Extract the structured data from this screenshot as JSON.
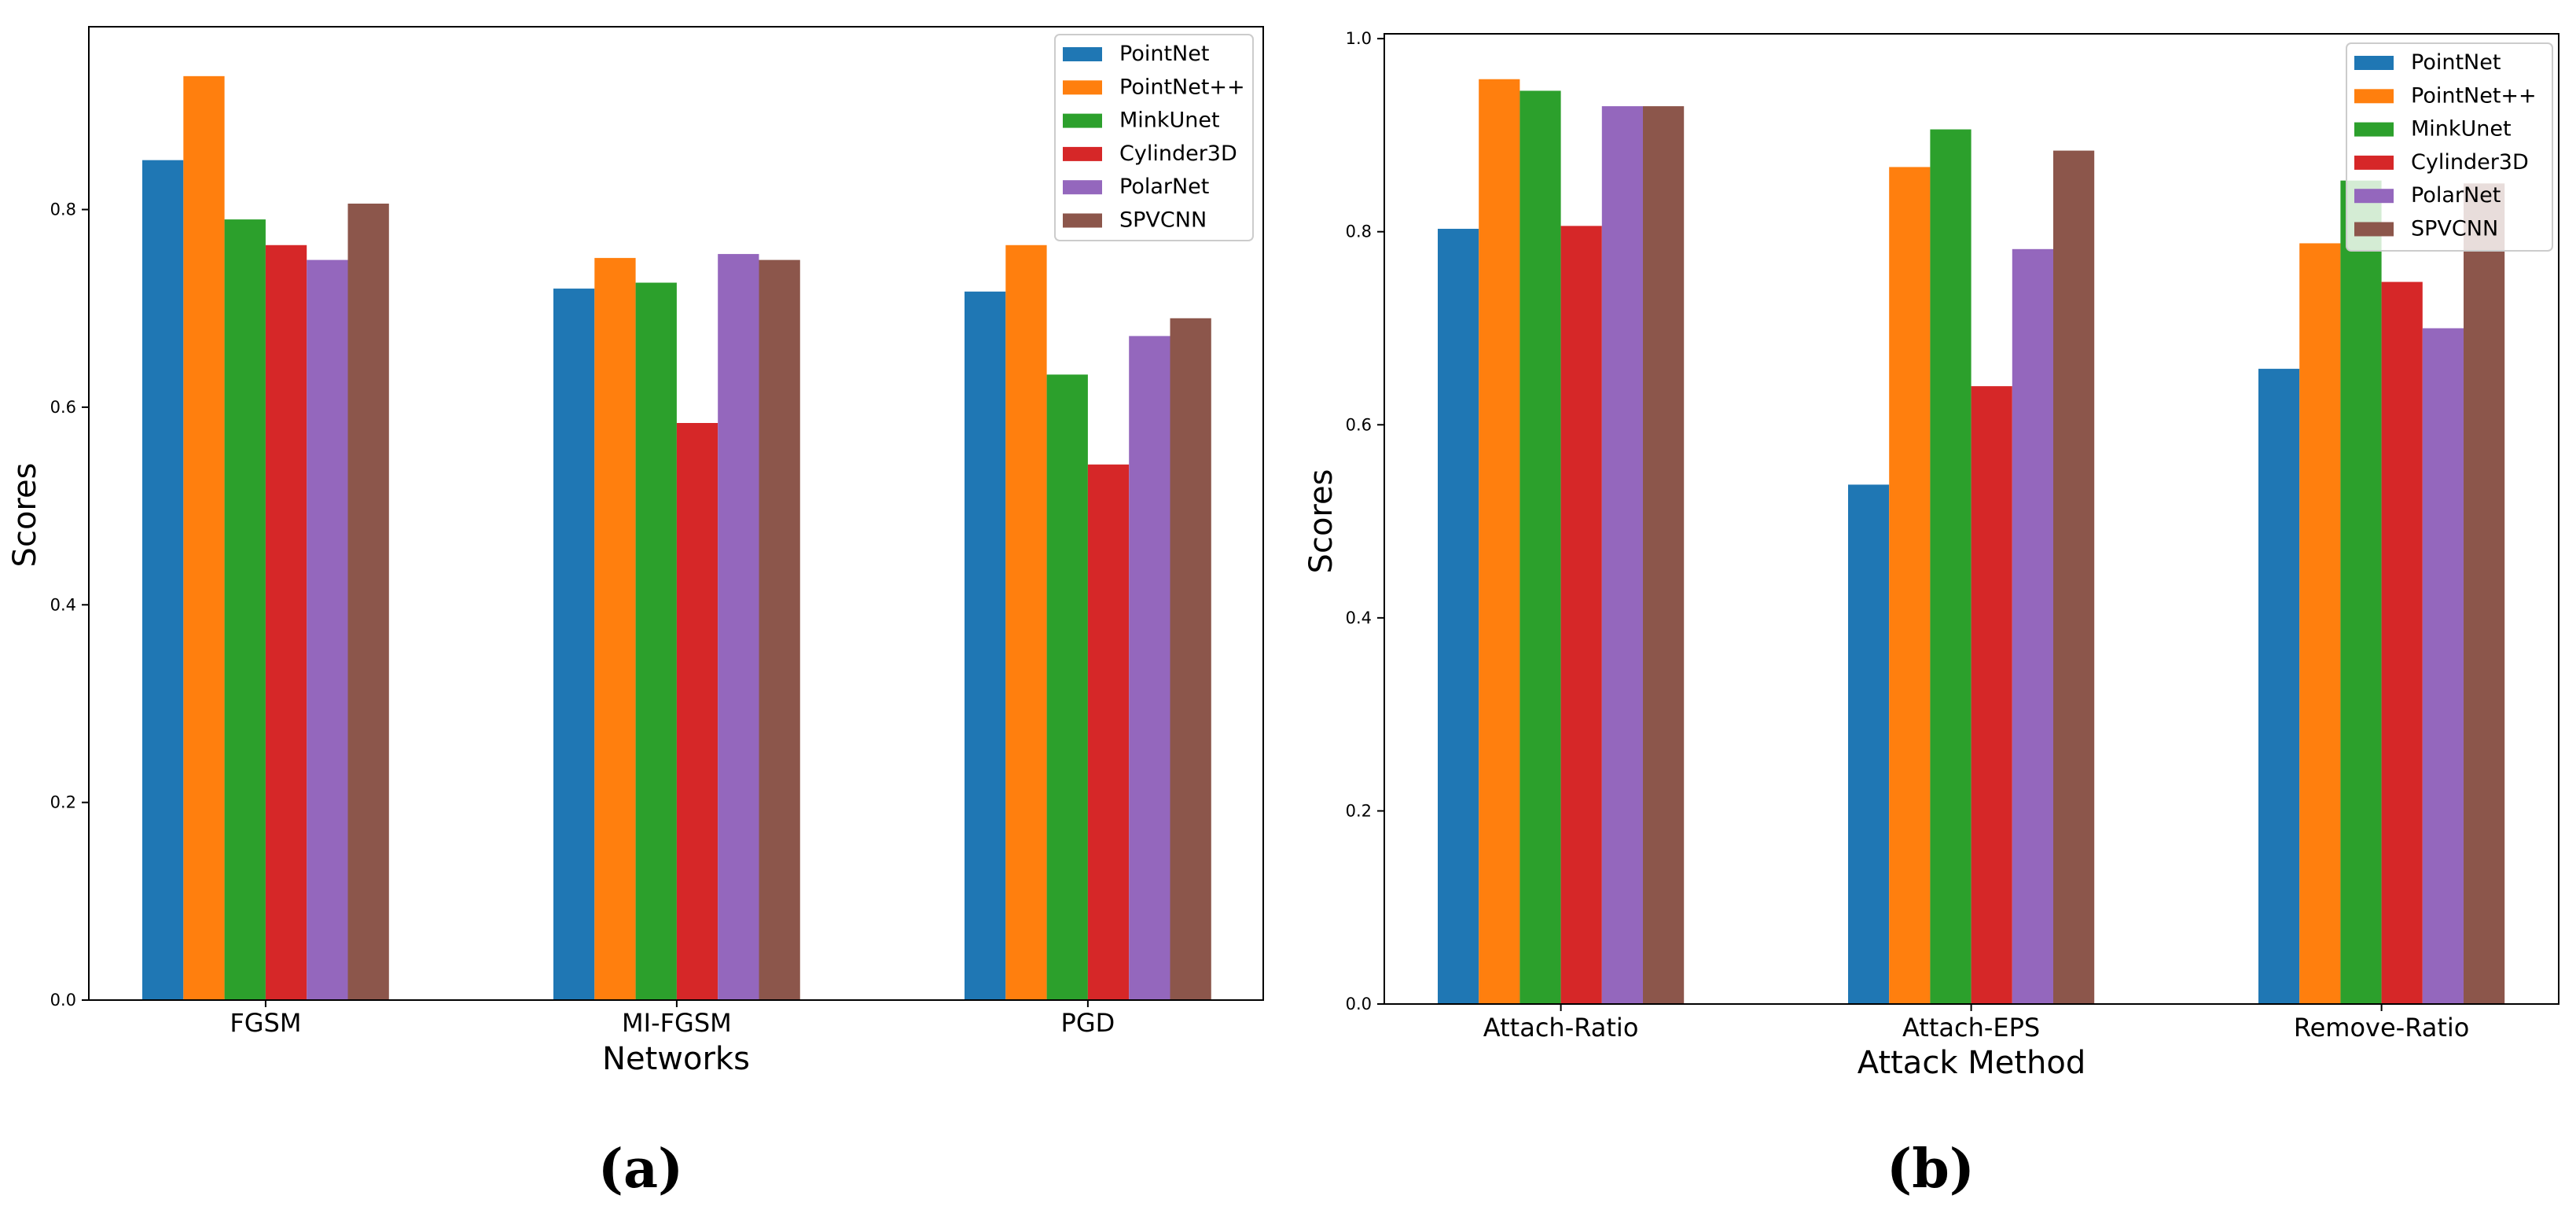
{
  "series_colors": [
    "#1f77b4",
    "#ff7f0e",
    "#2ca02c",
    "#d62728",
    "#9467bd",
    "#8c564b"
  ],
  "chart_data": [
    {
      "type": "bar",
      "panel_label": "(a)",
      "title": "",
      "xlabel": "Networks",
      "ylabel": "Scores",
      "categories": [
        "FGSM",
        "MI-FGSM",
        "PGD"
      ],
      "ylim": [
        0,
        0.985
      ],
      "yticks": [
        "0.0",
        "0.2",
        "0.4",
        "0.6",
        "0.8"
      ],
      "legend_position": "top-right",
      "series": [
        {
          "name": "PointNet",
          "values": [
            0.85,
            0.72,
            0.717
          ]
        },
        {
          "name": "PointNet++",
          "values": [
            0.935,
            0.751,
            0.764
          ]
        },
        {
          "name": "MinkUnet",
          "values": [
            0.79,
            0.726,
            0.633
          ]
        },
        {
          "name": "Cylinder3D",
          "values": [
            0.764,
            0.584,
            0.542
          ]
        },
        {
          "name": "PolarNet",
          "values": [
            0.749,
            0.755,
            0.672
          ]
        },
        {
          "name": "SPVCNN",
          "values": [
            0.806,
            0.749,
            0.69
          ]
        }
      ]
    },
    {
      "type": "bar",
      "panel_label": "(b)",
      "title": "",
      "xlabel": "Attack Method",
      "ylabel": "Scores",
      "categories": [
        "Attach-Ratio",
        "Attach-EPS",
        "Remove-Ratio"
      ],
      "ylim": [
        0,
        1.005
      ],
      "yticks": [
        "0.0",
        "0.2",
        "0.4",
        "0.6",
        "0.8",
        "1.0"
      ],
      "legend_position": "top-right",
      "series": [
        {
          "name": "PointNet",
          "values": [
            0.803,
            0.538,
            0.658
          ]
        },
        {
          "name": "PointNet++",
          "values": [
            0.958,
            0.867,
            0.788
          ]
        },
        {
          "name": "MinkUnet",
          "values": [
            0.946,
            0.906,
            0.853
          ]
        },
        {
          "name": "Cylinder3D",
          "values": [
            0.806,
            0.64,
            0.748
          ]
        },
        {
          "name": "PolarNet",
          "values": [
            0.93,
            0.782,
            0.7
          ]
        },
        {
          "name": "SPVCNN",
          "values": [
            0.93,
            0.884,
            0.85
          ]
        }
      ]
    }
  ]
}
